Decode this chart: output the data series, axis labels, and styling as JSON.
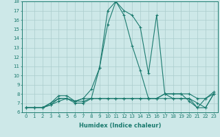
{
  "xlabel": "Humidex (Indice chaleur)",
  "x": [
    0,
    1,
    2,
    3,
    4,
    5,
    6,
    7,
    8,
    9,
    10,
    11,
    12,
    13,
    14,
    15,
    16,
    17,
    18,
    19,
    20,
    21,
    22,
    23
  ],
  "series": [
    [
      6.5,
      6.5,
      6.5,
      7.0,
      7.5,
      7.5,
      7.2,
      7.5,
      7.5,
      7.5,
      7.5,
      7.5,
      7.5,
      7.5,
      7.5,
      7.5,
      7.5,
      7.5,
      7.5,
      7.5,
      7.5,
      6.5,
      6.5,
      8.0
    ],
    [
      6.5,
      6.5,
      6.5,
      7.0,
      7.8,
      7.8,
      7.2,
      7.2,
      7.5,
      7.5,
      7.5,
      7.5,
      7.5,
      7.5,
      7.5,
      7.5,
      7.5,
      8.0,
      8.0,
      8.0,
      8.0,
      7.5,
      7.5,
      8.2
    ],
    [
      6.5,
      6.5,
      6.5,
      6.8,
      7.5,
      7.5,
      7.0,
      7.0,
      7.5,
      10.8,
      15.5,
      18.0,
      16.5,
      13.2,
      10.5,
      7.5,
      7.5,
      8.0,
      7.5,
      7.5,
      7.5,
      7.0,
      6.5,
      8.0
    ],
    [
      6.5,
      6.5,
      6.5,
      6.8,
      7.2,
      7.5,
      7.2,
      7.5,
      8.5,
      10.8,
      17.0,
      18.0,
      17.0,
      16.5,
      15.2,
      10.2,
      16.5,
      8.0,
      8.0,
      8.0,
      7.2,
      6.5,
      7.5,
      8.0
    ]
  ],
  "line_color": "#1a7a6e",
  "bg_color": "#cde8e8",
  "grid_color": "#aacccc",
  "ylim": [
    6,
    18
  ],
  "xlim_min": -0.5,
  "xlim_max": 23.5,
  "yticks": [
    6,
    7,
    8,
    9,
    10,
    11,
    12,
    13,
    14,
    15,
    16,
    17,
    18
  ],
  "xticks": [
    0,
    1,
    2,
    3,
    4,
    5,
    6,
    7,
    8,
    9,
    10,
    11,
    12,
    13,
    14,
    15,
    16,
    17,
    18,
    19,
    20,
    21,
    22,
    23
  ],
  "marker": "+",
  "linewidth": 0.8,
  "markersize": 3,
  "tick_fontsize": 5,
  "xlabel_fontsize": 6,
  "spine_color": "#1a7a6e"
}
